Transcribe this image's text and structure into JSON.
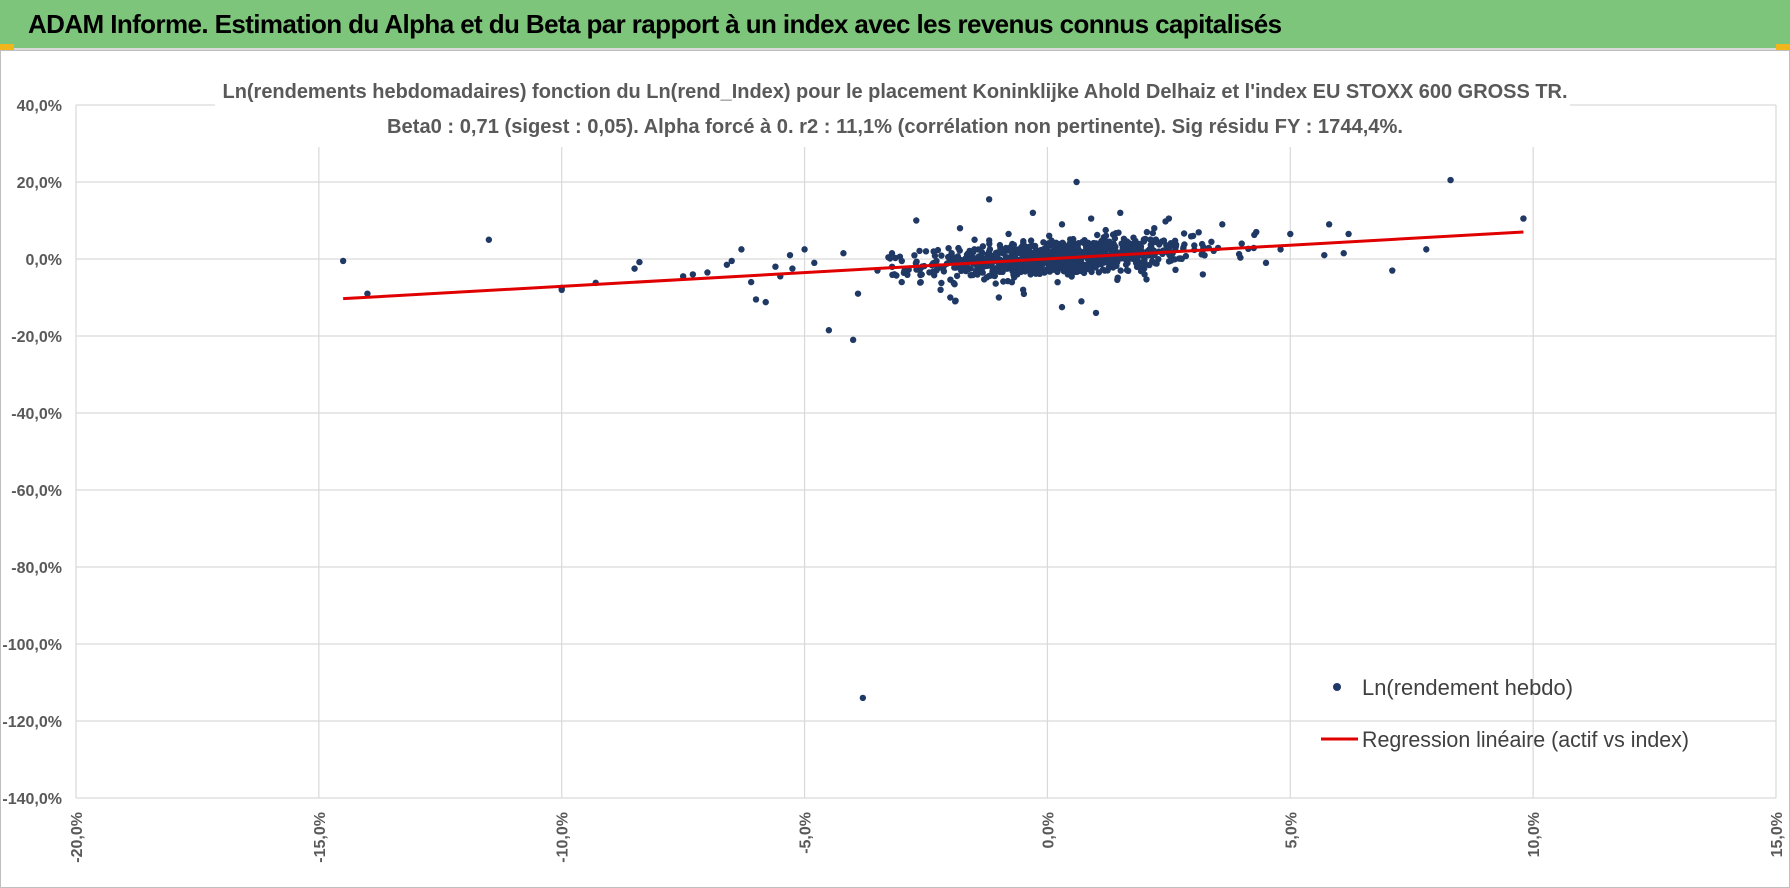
{
  "header": {
    "title": "ADAM Informe. Estimation du Alpha et du Beta par rapport à un index avec les revenus connus capitalisés"
  },
  "colors": {
    "banner": "#7dc57a",
    "points": "#1f3864",
    "regression": "#e00000",
    "grid": "#d9d9d9"
  },
  "chart_data": {
    "type": "scatter",
    "title": "Ln(rendements hebdomadaires) fonction du Ln(rend_Index) pour le placement Koninklijke Ahold Delhaiz et l'index EU STOXX 600 GROSS TR.",
    "subtitle": "Beta0 : 0,71 (sigest : 0,05).  Alpha forcé à 0. r2 : 11,1% (corrélation non pertinente). Sig résidu FY : 1744,4%.",
    "xlim": [
      -20,
      15
    ],
    "ylim": [
      -140,
      40
    ],
    "x_ticks": [
      -20,
      -15,
      -10,
      -5,
      0,
      5,
      10,
      15
    ],
    "y_ticks": [
      40,
      20,
      0,
      -20,
      -40,
      -60,
      -80,
      -100,
      -120,
      -140
    ],
    "x_tick_labels": [
      "-20,0%",
      "-15,0%",
      "-10,0%",
      "-5,0%",
      "0,0%",
      "5,0%",
      "10,0%",
      "15,0%"
    ],
    "y_tick_labels": [
      "40,0%",
      "20,0%",
      "0,0%",
      "-20,0%",
      "-40,0%",
      "-60,0%",
      "-80,0%",
      "-100,0%",
      "-120,0%",
      "-140,0%"
    ],
    "grid": true,
    "legend_position": "bottom-right",
    "series": [
      {
        "name": "Ln(rendement hebdo)",
        "type": "scatter",
        "color": "#1f3864",
        "points": [
          [
            -14.5,
            -0.5
          ],
          [
            -14.0,
            -9
          ],
          [
            -11.5,
            5
          ],
          [
            -10.0,
            -7.5
          ],
          [
            -10.0,
            -8
          ],
          [
            -9.3,
            -6.2
          ],
          [
            -8.5,
            -2.5
          ],
          [
            -8.4,
            -0.8
          ],
          [
            -7.5,
            -4.5
          ],
          [
            -7.3,
            -4
          ],
          [
            -7.0,
            -3.5
          ],
          [
            -6.6,
            -1.5
          ],
          [
            -6.3,
            2.5
          ],
          [
            -6.5,
            -0.5
          ],
          [
            -6.0,
            -10.5
          ],
          [
            -5.8,
            -11.2
          ],
          [
            -6.1,
            -6
          ],
          [
            -5.5,
            -4.5
          ],
          [
            -5.3,
            1
          ],
          [
            -5.0,
            2.5
          ],
          [
            -4.5,
            -18.5
          ],
          [
            -4.0,
            -21
          ],
          [
            -4.2,
            1.5
          ],
          [
            -3.9,
            -9
          ],
          [
            -3.8,
            -114
          ],
          [
            -3.5,
            -3
          ],
          [
            -3.0,
            -6
          ],
          [
            -2.7,
            10
          ],
          [
            -2.5,
            2
          ],
          [
            -2.2,
            -8
          ],
          [
            -1.9,
            -11
          ],
          [
            -1.8,
            8
          ],
          [
            -1.2,
            15.5
          ],
          [
            -1.0,
            -10
          ],
          [
            -0.5,
            -8
          ],
          [
            -0.3,
            12
          ],
          [
            0.0,
            3.5
          ],
          [
            0.3,
            9
          ],
          [
            0.3,
            -12.5
          ],
          [
            0.6,
            20
          ],
          [
            0.7,
            -11
          ],
          [
            0.9,
            10.5
          ],
          [
            1.0,
            -14
          ],
          [
            1.5,
            12
          ],
          [
            2.0,
            -4
          ],
          [
            2.5,
            10.5
          ],
          [
            2.8,
            3
          ],
          [
            3.2,
            -4
          ],
          [
            3.6,
            9
          ],
          [
            4.0,
            4
          ],
          [
            4.3,
            7
          ],
          [
            4.8,
            2.5
          ],
          [
            5.0,
            6.5
          ],
          [
            5.7,
            1
          ],
          [
            5.8,
            9
          ],
          [
            6.1,
            1.5
          ],
          [
            6.2,
            6.5
          ],
          [
            7.1,
            -3
          ],
          [
            7.8,
            2.5
          ],
          [
            8.3,
            20.5
          ],
          [
            9.8,
            10.5
          ],
          [
            4.5,
            -1
          ],
          [
            3.0,
            6
          ],
          [
            -1.5,
            5
          ],
          [
            -2.0,
            -10
          ],
          [
            -0.8,
            6.5
          ],
          [
            1.2,
            7.5
          ],
          [
            2.2,
            8
          ],
          [
            -3.2,
            1.5
          ],
          [
            -4.8,
            -1
          ],
          [
            -5.6,
            -2
          ]
        ]
      },
      {
        "name": "Regression linéaire (actif vs index)",
        "type": "line",
        "color": "#e00000",
        "points": [
          [
            -14.5,
            -10.3
          ],
          [
            9.8,
            7.0
          ]
        ]
      }
    ],
    "cloud": {
      "center_x": 0.2,
      "center_y": 0.3,
      "spread_x": 1.35,
      "spread_y": 2.3,
      "count": 900,
      "beta": 0.71
    }
  }
}
